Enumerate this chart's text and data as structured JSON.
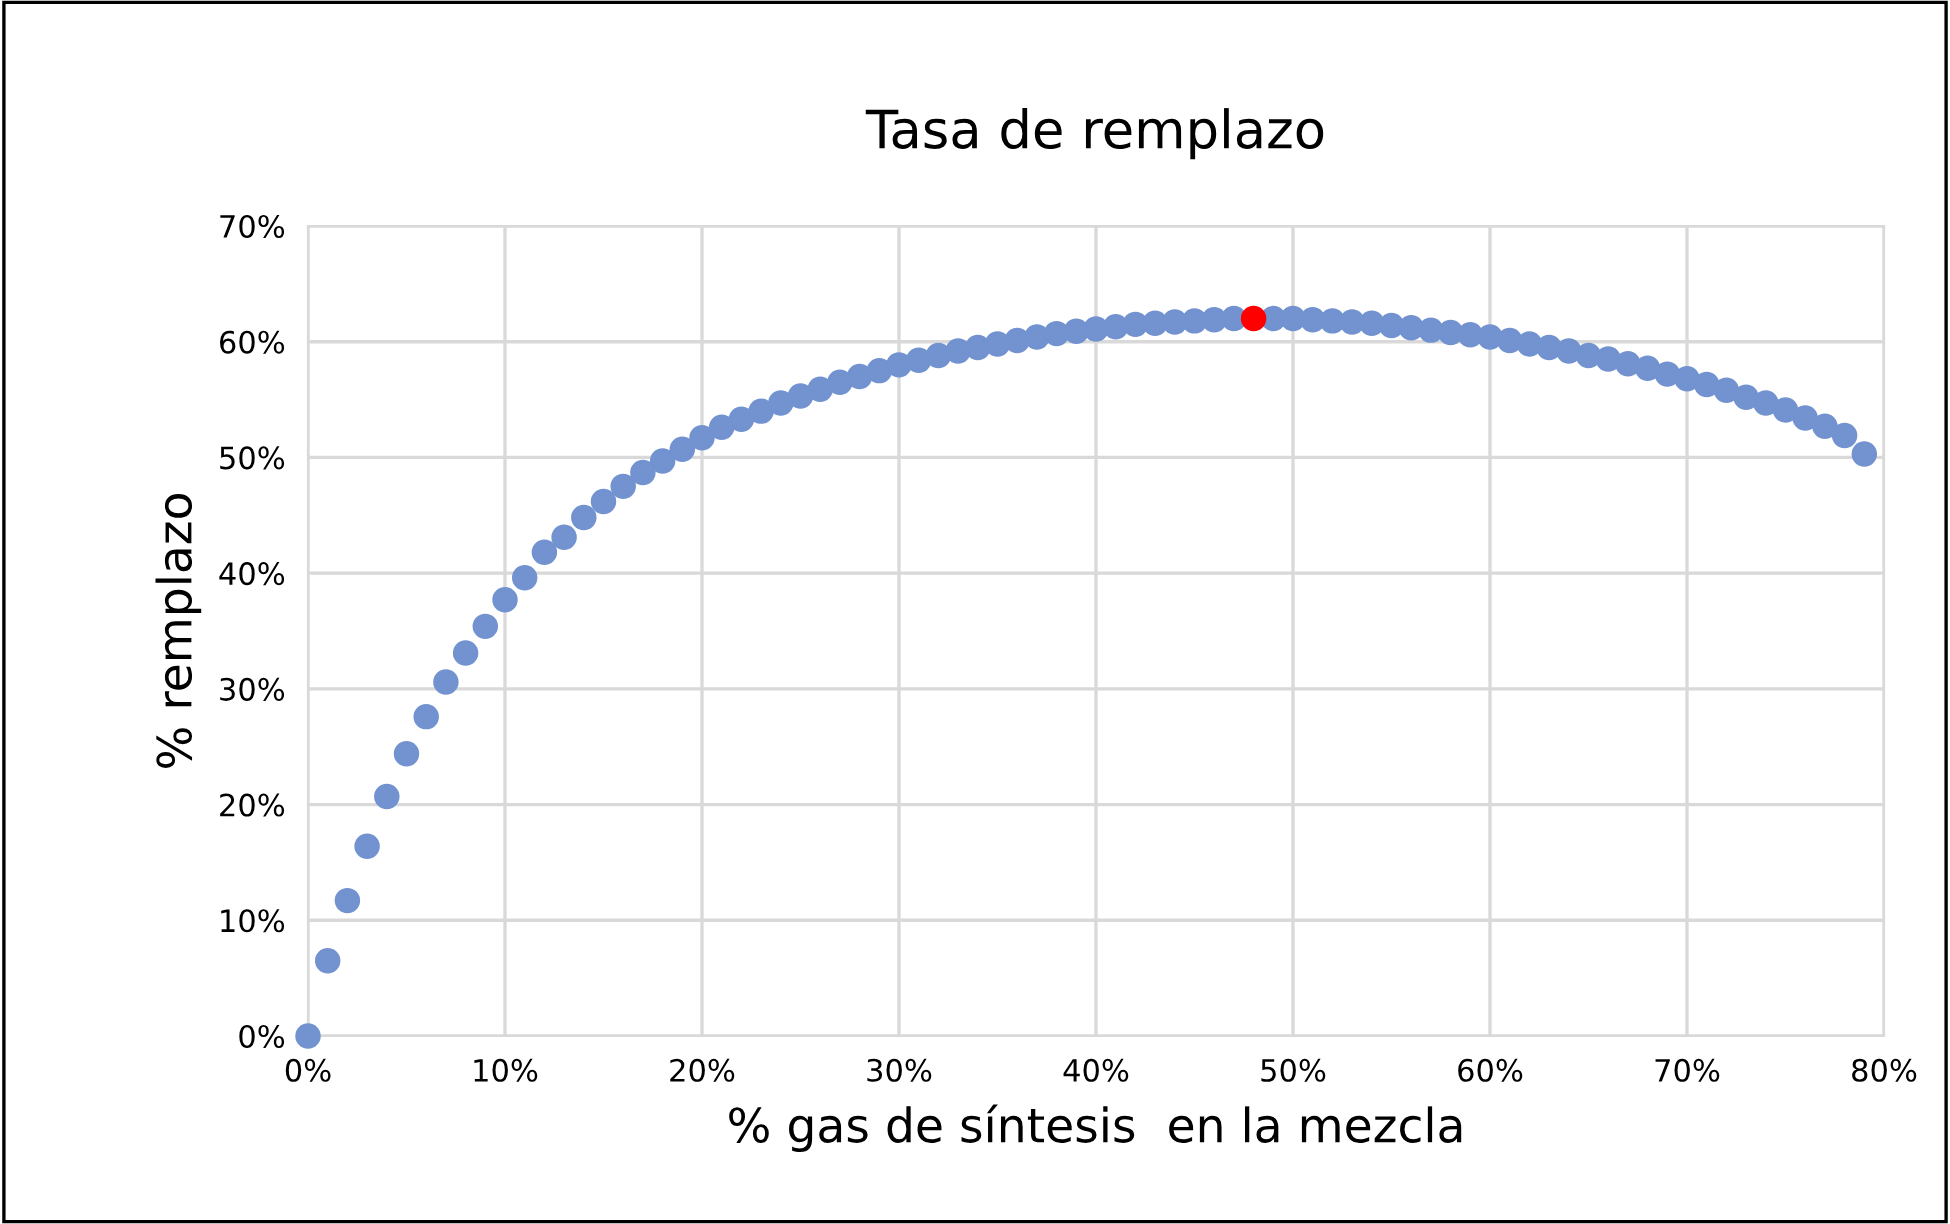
{
  "chart_data": {
    "type": "scatter",
    "title": "Tasa de remplazo",
    "xlabel": "% gas de síntesis  en la mezcla",
    "ylabel": "% remplazo",
    "series": [
      {
        "color": "#7292d0",
        "x": [
          0,
          1,
          2,
          3,
          4,
          5,
          6,
          7,
          8,
          9,
          10,
          11,
          12,
          13,
          14,
          15,
          16,
          17,
          18,
          19,
          20,
          21,
          22,
          23,
          24,
          25,
          26,
          27,
          28,
          29,
          30,
          31,
          32,
          33,
          34,
          35,
          36,
          37,
          38,
          39,
          40,
          41,
          42,
          43,
          44,
          45,
          46,
          47,
          49,
          50,
          51,
          52,
          53,
          54,
          55,
          56,
          57,
          58,
          59,
          60,
          61,
          62,
          63,
          64,
          65,
          66,
          67,
          68,
          69,
          70,
          71,
          72,
          73,
          74,
          75,
          76,
          77,
          78,
          79
        ],
        "values": [
          0,
          6.5,
          11.7,
          16.4,
          20.7,
          24.4,
          27.6,
          30.6,
          33.1,
          35.4,
          37.7,
          39.6,
          41.8,
          43.1,
          44.8,
          46.2,
          47.5,
          48.7,
          49.7,
          50.7,
          51.7,
          52.6,
          53.3,
          54.0,
          54.7,
          55.3,
          55.9,
          56.5,
          57.0,
          57.5,
          58.0,
          58.4,
          58.8,
          59.2,
          59.5,
          59.8,
          60.1,
          60.4,
          60.7,
          60.9,
          61.1,
          61.3,
          61.5,
          61.6,
          61.7,
          61.8,
          61.9,
          62.0,
          62.0,
          62.0,
          61.9,
          61.8,
          61.7,
          61.6,
          61.4,
          61.2,
          61.0,
          60.8,
          60.6,
          60.4,
          60.1,
          59.8,
          59.5,
          59.2,
          58.8,
          58.5,
          58.1,
          57.7,
          57.2,
          56.8,
          56.3,
          55.8,
          55.2,
          54.7,
          54.1,
          53.4,
          52.7,
          51.9,
          50.3
        ]
      },
      {
        "color": "#ff0000",
        "x": [
          48
        ],
        "values": [
          62.0
        ]
      }
    ],
    "xlim": [
      0,
      80
    ],
    "xticks": [
      {
        "value": 0,
        "label": "0%"
      },
      {
        "value": 10,
        "label": "10%"
      },
      {
        "value": 20,
        "label": "20%"
      },
      {
        "value": 30,
        "label": "30%"
      },
      {
        "value": 40,
        "label": "40%"
      },
      {
        "value": 50,
        "label": "50%"
      },
      {
        "value": 60,
        "label": "60%"
      },
      {
        "value": 70,
        "label": "70%"
      },
      {
        "value": 80,
        "label": "80%"
      }
    ],
    "ylim": [
      0,
      70
    ],
    "yticks": [
      {
        "value": 0,
        "label": "0%"
      },
      {
        "value": 10,
        "label": "10%"
      },
      {
        "value": 20,
        "label": "20%"
      },
      {
        "value": 30,
        "label": "30%"
      },
      {
        "value": 40,
        "label": "40%"
      },
      {
        "value": 50,
        "label": "50%"
      },
      {
        "value": 60,
        "label": "60%"
      },
      {
        "value": 70,
        "label": "70%"
      }
    ],
    "grid": true,
    "marker": "circle"
  }
}
